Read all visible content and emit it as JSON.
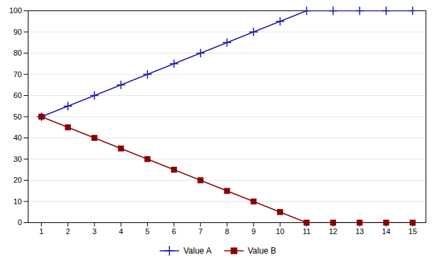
{
  "chart_data": {
    "type": "line",
    "x": [
      1,
      2,
      3,
      4,
      5,
      6,
      7,
      8,
      9,
      10,
      11,
      12,
      13,
      14,
      15
    ],
    "series": [
      {
        "name": "Value A",
        "color": "#1a1aaa",
        "marker": "plus",
        "values": [
          50,
          55,
          60,
          65,
          70,
          75,
          80,
          85,
          90,
          95,
          100,
          100,
          100,
          100,
          100
        ]
      },
      {
        "name": "Value B",
        "color": "#8b0000",
        "marker": "square",
        "values": [
          50,
          45,
          40,
          35,
          30,
          25,
          20,
          15,
          10,
          5,
          0,
          0,
          0,
          0,
          0
        ]
      }
    ],
    "xlim": [
      0.5,
      15.5
    ],
    "xticks": [
      1,
      2,
      3,
      4,
      5,
      6,
      7,
      8,
      9,
      10,
      11,
      12,
      13,
      14,
      15
    ],
    "ylim": [
      0,
      100
    ],
    "yticks": [
      0,
      10,
      20,
      30,
      40,
      50,
      60,
      70,
      80,
      90,
      100
    ],
    "grid": "y",
    "legend": "bottom"
  }
}
